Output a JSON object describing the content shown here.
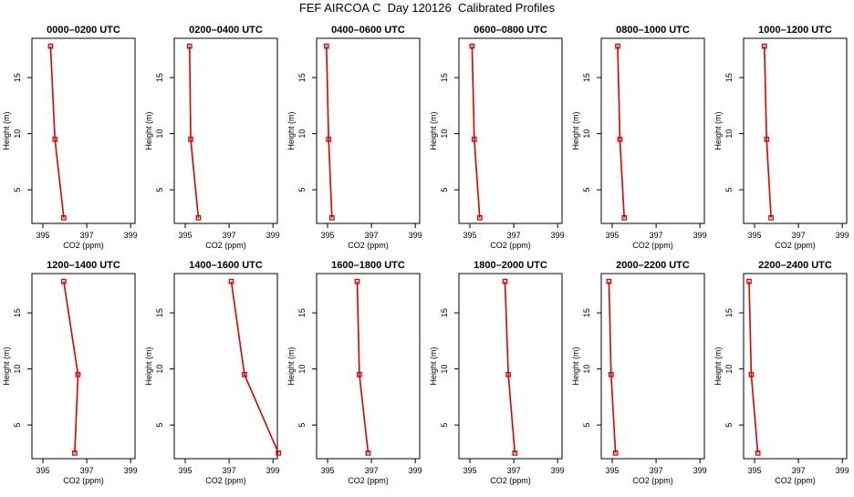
{
  "figure": {
    "title": "FEF AIRCOA C  Day 120126  Calibrated Profiles"
  },
  "style": {
    "series_color": "#dd0000",
    "axis_color": "#000000"
  },
  "chart_data": [
    {
      "type": "line",
      "title": "0000–0200 UTC",
      "xlabel": "CO2 (ppm)",
      "ylabel": "Height (m)",
      "xlim": [
        394.5,
        399.2
      ],
      "ylim": [
        2,
        18.5
      ],
      "x_ticks": [
        395,
        397,
        399
      ],
      "y_ticks": [
        5,
        10,
        15
      ],
      "series": [
        {
          "x": [
            395.35,
            395.55,
            395.95
          ],
          "y": [
            17.8,
            9.5,
            2.5
          ]
        }
      ]
    },
    {
      "type": "line",
      "title": "0200–0400 UTC",
      "xlabel": "CO2 (ppm)",
      "ylabel": "Height (m)",
      "xlim": [
        394.5,
        399.2
      ],
      "ylim": [
        2,
        18.5
      ],
      "x_ticks": [
        395,
        397,
        399
      ],
      "y_ticks": [
        5,
        10,
        15
      ],
      "series": [
        {
          "x": [
            395.2,
            395.25,
            395.6
          ],
          "y": [
            17.8,
            9.5,
            2.5
          ]
        }
      ]
    },
    {
      "type": "line",
      "title": "0400–0600 UTC",
      "xlabel": "CO2 (ppm)",
      "ylabel": "Height (m)",
      "xlim": [
        394.5,
        399.2
      ],
      "ylim": [
        2,
        18.5
      ],
      "x_ticks": [
        395,
        397,
        399
      ],
      "y_ticks": [
        5,
        10,
        15
      ],
      "series": [
        {
          "x": [
            394.95,
            395.05,
            395.2
          ],
          "y": [
            17.8,
            9.5,
            2.5
          ]
        }
      ]
    },
    {
      "type": "line",
      "title": "0600–0800 UTC",
      "xlabel": "CO2 (ppm)",
      "ylabel": "Height (m)",
      "xlim": [
        394.5,
        399.2
      ],
      "ylim": [
        2,
        18.5
      ],
      "x_ticks": [
        395,
        397,
        399
      ],
      "y_ticks": [
        5,
        10,
        15
      ],
      "series": [
        {
          "x": [
            395.1,
            395.2,
            395.45
          ],
          "y": [
            17.8,
            9.5,
            2.5
          ]
        }
      ]
    },
    {
      "type": "line",
      "title": "0800–1000 UTC",
      "xlabel": "CO2 (ppm)",
      "ylabel": "Height (m)",
      "xlim": [
        394.5,
        399.2
      ],
      "ylim": [
        2,
        18.5
      ],
      "x_ticks": [
        395,
        397,
        399
      ],
      "y_ticks": [
        5,
        10,
        15
      ],
      "series": [
        {
          "x": [
            395.25,
            395.35,
            395.55
          ],
          "y": [
            17.8,
            9.5,
            2.5
          ]
        }
      ]
    },
    {
      "type": "line",
      "title": "1000–1200 UTC",
      "xlabel": "CO2 (ppm)",
      "ylabel": "Height (m)",
      "xlim": [
        394.5,
        399.2
      ],
      "ylim": [
        2,
        18.5
      ],
      "x_ticks": [
        395,
        397,
        399
      ],
      "y_ticks": [
        5,
        10,
        15
      ],
      "series": [
        {
          "x": [
            395.45,
            395.55,
            395.75
          ],
          "y": [
            17.8,
            9.5,
            2.5
          ]
        }
      ]
    },
    {
      "type": "line",
      "title": "1200–1400 UTC",
      "xlabel": "CO2 (ppm)",
      "ylabel": "Height (m)",
      "xlim": [
        394.5,
        399.2
      ],
      "ylim": [
        2,
        18.5
      ],
      "x_ticks": [
        395,
        397,
        399
      ],
      "y_ticks": [
        5,
        10,
        15
      ],
      "series": [
        {
          "x": [
            395.95,
            396.6,
            396.45
          ],
          "y": [
            17.8,
            9.5,
            2.5
          ]
        }
      ]
    },
    {
      "type": "line",
      "title": "1400–1600 UTC",
      "xlabel": "CO2 (ppm)",
      "ylabel": "Height (m)",
      "xlim": [
        394.5,
        399.2
      ],
      "ylim": [
        2,
        18.5
      ],
      "x_ticks": [
        395,
        397,
        399
      ],
      "y_ticks": [
        5,
        10,
        15
      ],
      "series": [
        {
          "x": [
            397.1,
            397.7,
            399.25
          ],
          "y": [
            17.8,
            9.5,
            2.5
          ]
        }
      ]
    },
    {
      "type": "line",
      "title": "1600–1800 UTC",
      "xlabel": "CO2 (ppm)",
      "ylabel": "Height (m)",
      "xlim": [
        394.5,
        399.2
      ],
      "ylim": [
        2,
        18.5
      ],
      "x_ticks": [
        395,
        397,
        399
      ],
      "y_ticks": [
        5,
        10,
        15
      ],
      "series": [
        {
          "x": [
            396.35,
            396.45,
            396.85
          ],
          "y": [
            17.8,
            9.5,
            2.5
          ]
        }
      ]
    },
    {
      "type": "line",
      "title": "1800–2000 UTC",
      "xlabel": "CO2 (ppm)",
      "ylabel": "Height (m)",
      "xlim": [
        394.5,
        399.2
      ],
      "ylim": [
        2,
        18.5
      ],
      "x_ticks": [
        395,
        397,
        399
      ],
      "y_ticks": [
        5,
        10,
        15
      ],
      "series": [
        {
          "x": [
            396.6,
            396.75,
            397.05
          ],
          "y": [
            17.8,
            9.5,
            2.5
          ]
        }
      ]
    },
    {
      "type": "line",
      "title": "2000–2200 UTC",
      "xlabel": "CO2 (ppm)",
      "ylabel": "Height (m)",
      "xlim": [
        394.5,
        399.2
      ],
      "ylim": [
        2,
        18.5
      ],
      "x_ticks": [
        395,
        397,
        399
      ],
      "y_ticks": [
        5,
        10,
        15
      ],
      "series": [
        {
          "x": [
            394.85,
            394.95,
            395.15
          ],
          "y": [
            17.8,
            9.5,
            2.5
          ]
        }
      ]
    },
    {
      "type": "line",
      "title": "2200–2400 UTC",
      "xlabel": "CO2 (ppm)",
      "ylabel": "Height (m)",
      "xlim": [
        394.5,
        399.2
      ],
      "ylim": [
        2,
        18.5
      ],
      "x_ticks": [
        395,
        397,
        399
      ],
      "y_ticks": [
        5,
        10,
        15
      ],
      "series": [
        {
          "x": [
            394.75,
            394.85,
            395.15
          ],
          "y": [
            17.8,
            9.5,
            2.5
          ]
        }
      ]
    }
  ]
}
